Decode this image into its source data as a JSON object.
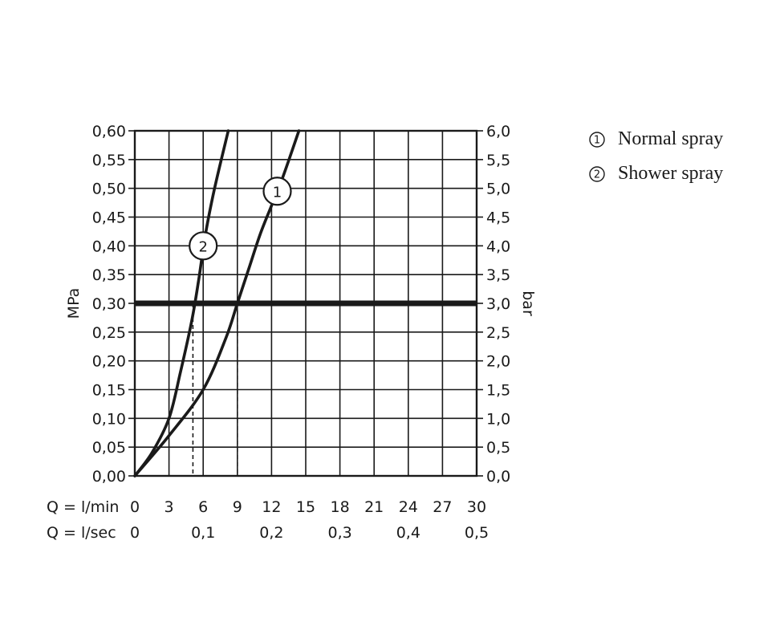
{
  "chart_data": {
    "type": "line",
    "left_axis": {
      "label": "MPa",
      "ylim": [
        0,
        0.6
      ],
      "ticks": [
        "0,00",
        "0,05",
        "0,10",
        "0,15",
        "0,20",
        "0,25",
        "0,30",
        "0,35",
        "0,40",
        "0,45",
        "0,50",
        "0,55",
        "0,60"
      ]
    },
    "right_axis": {
      "label": "bar",
      "ticks": [
        "0,0",
        "0,5",
        "1,0",
        "1,5",
        "2,0",
        "2,5",
        "3,0",
        "3,5",
        "4,0",
        "4,5",
        "5,0",
        "5,5",
        "6,0"
      ]
    },
    "x_axis_lmin": {
      "label": "Q = l/min",
      "xlim": [
        0,
        30
      ],
      "ticks": [
        "0",
        "3",
        "6",
        "9",
        "12",
        "15",
        "18",
        "21",
        "24",
        "27",
        "30"
      ]
    },
    "x_axis_lsec": {
      "label": "Q = l/sec",
      "ticks": [
        {
          "value": 0,
          "text": "0"
        },
        {
          "value": 0.1,
          "text": "0,1"
        },
        {
          "value": 0.2,
          "text": "0,2"
        },
        {
          "value": 0.3,
          "text": "0,3"
        },
        {
          "value": 0.4,
          "text": "0,4"
        },
        {
          "value": 0.5,
          "text": "0,5"
        }
      ]
    },
    "grid": true,
    "series": [
      {
        "name": "Normal spray",
        "marker": "1",
        "marker_at": {
          "x": 12.5,
          "y": 0.495
        },
        "flow_at_reference": 9.0,
        "points": [
          [
            0,
            0
          ],
          [
            3,
            0.07
          ],
          [
            6,
            0.15
          ],
          [
            8,
            0.24
          ],
          [
            9,
            0.3
          ],
          [
            10,
            0.36
          ],
          [
            11,
            0.42
          ],
          [
            12,
            0.47
          ],
          [
            13,
            0.52
          ],
          [
            14.4,
            0.6
          ]
        ]
      },
      {
        "name": "Shower spray",
        "marker": "2",
        "marker_at": {
          "x": 6.0,
          "y": 0.4
        },
        "flow_at_reference": 5.1,
        "points": [
          [
            0,
            0
          ],
          [
            1.5,
            0.04
          ],
          [
            3,
            0.1
          ],
          [
            4,
            0.18
          ],
          [
            5,
            0.27
          ],
          [
            5.6,
            0.34
          ],
          [
            6.2,
            0.42
          ],
          [
            7,
            0.5
          ],
          [
            8.2,
            0.6
          ]
        ]
      }
    ],
    "reference_line": {
      "y": 0.3
    }
  },
  "legend": [
    {
      "num": "1",
      "label": "Normal spray"
    },
    {
      "num": "2",
      "label": "Shower spray"
    }
  ],
  "colors": {
    "ink": "#1a1a1a",
    "background": "#ffffff"
  }
}
